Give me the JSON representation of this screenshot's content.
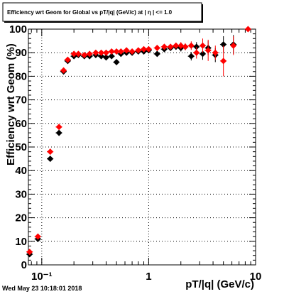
{
  "chart_data": {
    "type": "scatter",
    "title": "Efficiency wrt Geom for Global vs pT/|q| (GeV/c) at | η | <= 1.0",
    "xlabel": "pT/|q| (GeV/c)",
    "ylabel": "Efficiency wrt Geom (%)",
    "xscale": "log",
    "xlim": [
      0.075,
      10
    ],
    "ylim": [
      0,
      100
    ],
    "grid": true,
    "legend": "none",
    "x_tick_labels": [
      {
        "value": 0.1,
        "label": "10⁻¹"
      },
      {
        "value": 1,
        "label": "1"
      },
      {
        "value": 10,
        "label": "10"
      }
    ],
    "y_tick_labels": [
      0,
      10,
      20,
      30,
      40,
      50,
      60,
      70,
      80,
      90,
      100
    ],
    "timestamp": "Wed May 23 10:18:01 2018",
    "series": [
      {
        "color": "#000000",
        "points": [
          {
            "x": 0.077,
            "y": 4.5,
            "ey": 1.0
          },
          {
            "x": 0.092,
            "y": 11.0,
            "ey": 1.0
          },
          {
            "x": 0.12,
            "y": 45.0,
            "ey": 1.0
          },
          {
            "x": 0.145,
            "y": 56.0,
            "ey": 1.0
          },
          {
            "x": 0.16,
            "y": 82.0,
            "ey": 1.0
          },
          {
            "x": 0.175,
            "y": 86.5,
            "ey": 1.0
          },
          {
            "x": 0.2,
            "y": 88.5,
            "ey": 1.0
          },
          {
            "x": 0.22,
            "y": 89.0,
            "ey": 1.0
          },
          {
            "x": 0.25,
            "y": 88.5,
            "ey": 1.0
          },
          {
            "x": 0.28,
            "y": 88.5,
            "ey": 1.0
          },
          {
            "x": 0.32,
            "y": 89.0,
            "ey": 1.0
          },
          {
            "x": 0.36,
            "y": 88.5,
            "ey": 1.0
          },
          {
            "x": 0.4,
            "y": 88.0,
            "ey": 1.0
          },
          {
            "x": 0.45,
            "y": 88.5,
            "ey": 1.0
          },
          {
            "x": 0.5,
            "y": 86.0,
            "ey": 1.2
          },
          {
            "x": 0.55,
            "y": 89.5,
            "ey": 1.0
          },
          {
            "x": 0.62,
            "y": 90.0,
            "ey": 1.0
          },
          {
            "x": 0.7,
            "y": 90.0,
            "ey": 1.0
          },
          {
            "x": 0.8,
            "y": 90.5,
            "ey": 1.0
          },
          {
            "x": 0.9,
            "y": 90.5,
            "ey": 1.0
          },
          {
            "x": 1.0,
            "y": 91.0,
            "ey": 1.0
          },
          {
            "x": 1.2,
            "y": 89.5,
            "ey": 1.0
          },
          {
            "x": 1.4,
            "y": 91.5,
            "ey": 1.2
          },
          {
            "x": 1.6,
            "y": 92.0,
            "ey": 1.2
          },
          {
            "x": 1.8,
            "y": 92.5,
            "ey": 1.2
          },
          {
            "x": 2.0,
            "y": 92.0,
            "ey": 1.5
          },
          {
            "x": 2.2,
            "y": 92.5,
            "ey": 1.5
          },
          {
            "x": 2.5,
            "y": 88.5,
            "ey": 1.8
          },
          {
            "x": 2.8,
            "y": 92.5,
            "ey": 2.0
          },
          {
            "x": 3.2,
            "y": 89.5,
            "ey": 2.5
          },
          {
            "x": 3.6,
            "y": 92.0,
            "ey": 3.0
          },
          {
            "x": 4.2,
            "y": 89.0,
            "ey": 3.0
          },
          {
            "x": 5.0,
            "y": 93.5,
            "ey": 3.5
          },
          {
            "x": 6.2,
            "y": 93.5,
            "ey": 4.0
          }
        ]
      },
      {
        "color": "#ff0000",
        "points": [
          {
            "x": 0.077,
            "y": 5.5,
            "ey": 1.0
          },
          {
            "x": 0.092,
            "y": 12.0,
            "ey": 1.0
          },
          {
            "x": 0.12,
            "y": 48.0,
            "ey": 1.0
          },
          {
            "x": 0.145,
            "y": 58.5,
            "ey": 1.0
          },
          {
            "x": 0.16,
            "y": 82.5,
            "ey": 1.0
          },
          {
            "x": 0.175,
            "y": 87.0,
            "ey": 1.0
          },
          {
            "x": 0.2,
            "y": 89.5,
            "ey": 1.0
          },
          {
            "x": 0.22,
            "y": 89.5,
            "ey": 1.0
          },
          {
            "x": 0.25,
            "y": 89.0,
            "ey": 1.0
          },
          {
            "x": 0.28,
            "y": 89.5,
            "ey": 1.0
          },
          {
            "x": 0.32,
            "y": 90.0,
            "ey": 1.0
          },
          {
            "x": 0.36,
            "y": 90.0,
            "ey": 1.0
          },
          {
            "x": 0.4,
            "y": 90.0,
            "ey": 1.0
          },
          {
            "x": 0.45,
            "y": 90.5,
            "ey": 1.0
          },
          {
            "x": 0.5,
            "y": 90.5,
            "ey": 1.0
          },
          {
            "x": 0.55,
            "y": 90.5,
            "ey": 1.0
          },
          {
            "x": 0.62,
            "y": 91.0,
            "ey": 1.0
          },
          {
            "x": 0.7,
            "y": 90.5,
            "ey": 1.0
          },
          {
            "x": 0.8,
            "y": 91.0,
            "ey": 1.0
          },
          {
            "x": 0.9,
            "y": 91.5,
            "ey": 1.0
          },
          {
            "x": 1.0,
            "y": 91.5,
            "ey": 1.0
          },
          {
            "x": 1.2,
            "y": 92.0,
            "ey": 1.0
          },
          {
            "x": 1.4,
            "y": 92.5,
            "ey": 1.2
          },
          {
            "x": 1.6,
            "y": 92.5,
            "ey": 1.2
          },
          {
            "x": 1.8,
            "y": 93.0,
            "ey": 1.2
          },
          {
            "x": 2.0,
            "y": 93.0,
            "ey": 1.5
          },
          {
            "x": 2.2,
            "y": 92.5,
            "ey": 1.5
          },
          {
            "x": 2.5,
            "y": 93.0,
            "ey": 1.8
          },
          {
            "x": 2.8,
            "y": 90.0,
            "ey": 2.5
          },
          {
            "x": 3.2,
            "y": 93.0,
            "ey": 3.0
          },
          {
            "x": 3.6,
            "y": 91.0,
            "ey": 4.5
          },
          {
            "x": 4.2,
            "y": 90.0,
            "ey": 3.0
          },
          {
            "x": 5.0,
            "y": 86.5,
            "ey": 6.5
          },
          {
            "x": 6.2,
            "y": 93.0,
            "ey": 4.0
          },
          {
            "x": 8.5,
            "y": 100.0,
            "ey": 1.0
          }
        ]
      }
    ]
  }
}
